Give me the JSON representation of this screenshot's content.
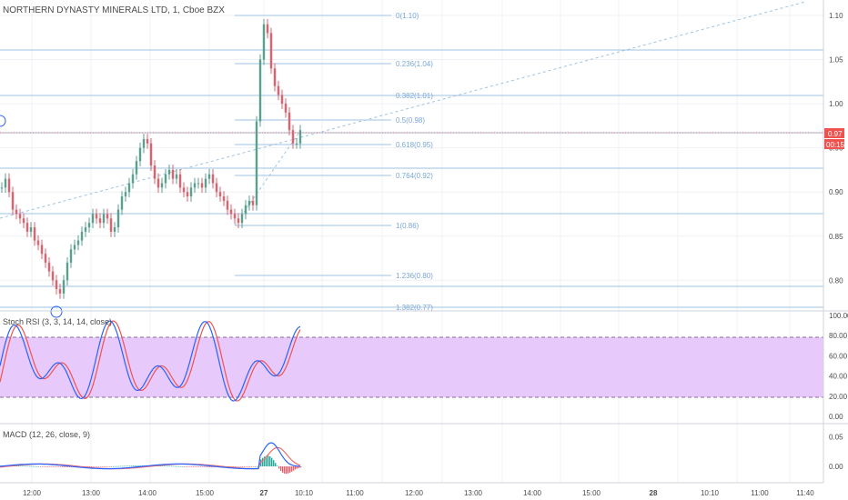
{
  "colors": {
    "up": "#5aa08f",
    "down": "#e0606e",
    "fib": "#9fc3e3",
    "fib_text": "#7aa6d6",
    "axis_text": "#4a4a4a",
    "grid": "#eef1f5",
    "rsi_k": "#2962ff",
    "rsi_d": "#ef5350",
    "rsi_band": "#e8c9fb",
    "macd": "#2962ff",
    "signal": "#ef6c6c",
    "hist": "#26a69a",
    "price_badge": "#ef5350"
  },
  "main": {
    "title": "NORTHERN DYNASTY MINERALS LTD, 1, Cboe BZX",
    "price_badge": "0.97",
    "time_badge": "00:15",
    "y_ticks": [
      "1.10",
      "1.05",
      "1.00",
      "0.95",
      "0.90",
      "0.85",
      "0.80"
    ]
  },
  "stoch_rsi": {
    "label": "Stoch RSI (3, 3, 14, 14, close)",
    "y_ticks": [
      "100.00",
      "80.00",
      "60.00",
      "40.00",
      "20.00",
      "0.00"
    ]
  },
  "macd": {
    "label": "MACD (12, 26, close, 9)",
    "y_ticks": [
      "0.05",
      "0.00"
    ]
  },
  "x_axis": {
    "labels": [
      "12:00",
      "13:00",
      "14:00",
      "15:00",
      "27",
      "10:10",
      "11:00",
      "12:00",
      "13:00",
      "14:00",
      "15:00",
      "28",
      "10:10",
      "11:00",
      "11:40"
    ]
  },
  "fib_levels": [
    "0(1.10)",
    "0.236(1.04)",
    "0.382(1.01)",
    "0.5(0.98)",
    "0.618(0.95)",
    "0.764(0.92)",
    "1(0.86)",
    "1.236(0.80)",
    "1.382(0.77)"
  ],
  "chart_data": {
    "type": "line",
    "title": "NORTHERN DYNASTY MINERALS LTD, 1, Cboe BZX",
    "ylim": [
      0.77,
      1.12
    ],
    "x_labels": [
      "12:00",
      "13:00",
      "14:00",
      "15:00",
      "27",
      "10:10"
    ],
    "series": [
      {
        "name": "NORTHERN DYNASTY MINERALS LTD",
        "values": [
          0.905,
          0.915,
          0.9,
          0.88,
          0.875,
          0.87,
          0.865,
          0.855,
          0.86,
          0.845,
          0.84,
          0.83,
          0.82,
          0.81,
          0.8,
          0.79,
          0.785,
          0.8,
          0.82,
          0.835,
          0.84,
          0.845,
          0.855,
          0.86,
          0.865,
          0.875,
          0.87,
          0.865,
          0.875,
          0.87,
          0.855,
          0.86,
          0.88,
          0.895,
          0.9,
          0.91,
          0.92,
          0.935,
          0.95,
          0.96,
          0.955,
          0.93,
          0.915,
          0.905,
          0.91,
          0.92,
          0.925,
          0.915,
          0.92,
          0.905,
          0.9,
          0.895,
          0.905,
          0.91,
          0.91,
          0.905,
          0.915,
          0.92,
          0.91,
          0.9,
          0.895,
          0.89,
          0.88,
          0.875,
          0.87,
          0.865,
          0.875,
          0.885,
          0.89,
          0.885,
          0.98,
          1.05,
          1.09,
          1.08,
          1.04,
          1.02,
          1.01,
          1.0,
          0.99,
          0.97,
          0.955,
          0.955,
          0.97
        ]
      }
    ]
  }
}
